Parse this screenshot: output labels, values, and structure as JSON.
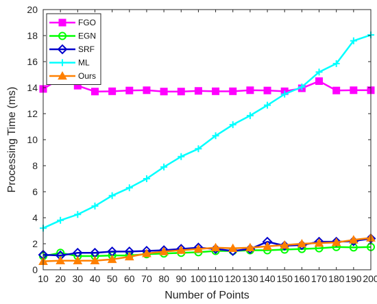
{
  "chart_data": {
    "type": "line",
    "xlabel": "Number of Points",
    "ylabel": "Processing Time (ms)",
    "xlim": [
      10,
      200
    ],
    "ylim": [
      0,
      20
    ],
    "x_ticks": [
      10,
      20,
      30,
      40,
      50,
      60,
      70,
      80,
      90,
      100,
      110,
      120,
      130,
      140,
      150,
      160,
      170,
      180,
      190,
      200
    ],
    "y_ticks": [
      0,
      2,
      4,
      6,
      8,
      10,
      12,
      14,
      16,
      18,
      20
    ],
    "grid": false,
    "legend_position": "top-left",
    "x": [
      10,
      20,
      30,
      40,
      50,
      60,
      70,
      80,
      90,
      100,
      110,
      120,
      130,
      140,
      150,
      160,
      170,
      180,
      190,
      200
    ],
    "series": [
      {
        "name": "FGO",
        "color": "#ff00ff",
        "marker": "square",
        "values": [
          13.9,
          14.7,
          14.15,
          13.7,
          13.72,
          13.78,
          13.8,
          13.7,
          13.7,
          13.75,
          13.72,
          13.72,
          13.8,
          13.78,
          13.72,
          13.95,
          14.5,
          13.78,
          13.8,
          13.8
        ]
      },
      {
        "name": "EGN",
        "color": "#00ff00",
        "marker": "circle",
        "values": [
          1.05,
          1.3,
          1.05,
          1.05,
          1.1,
          1.1,
          1.2,
          1.25,
          1.3,
          1.35,
          1.45,
          1.45,
          1.5,
          1.5,
          1.55,
          1.6,
          1.65,
          1.75,
          1.72,
          1.75
        ]
      },
      {
        "name": "SRF",
        "color": "#0000cc",
        "marker": "diamond",
        "values": [
          1.15,
          1.1,
          1.3,
          1.3,
          1.4,
          1.4,
          1.45,
          1.5,
          1.6,
          1.7,
          1.6,
          1.45,
          1.6,
          2.15,
          1.85,
          1.9,
          2.15,
          2.15,
          2.2,
          2.4
        ]
      },
      {
        "name": "ML",
        "color": "#00ffff",
        "marker": "plus",
        "values": [
          3.2,
          3.8,
          4.25,
          4.9,
          5.7,
          6.3,
          7.0,
          7.9,
          8.7,
          9.3,
          10.3,
          11.15,
          11.85,
          12.65,
          13.5,
          14.05,
          15.2,
          15.85,
          17.6,
          18.05
        ]
      },
      {
        "name": "Ours",
        "color": "#ff8000",
        "marker": "triangle",
        "values": [
          0.65,
          0.7,
          0.7,
          0.7,
          0.8,
          1.0,
          1.25,
          1.4,
          1.5,
          1.6,
          1.7,
          1.65,
          1.7,
          1.8,
          1.9,
          2.0,
          2.05,
          2.1,
          2.3,
          2.45
        ]
      }
    ]
  }
}
